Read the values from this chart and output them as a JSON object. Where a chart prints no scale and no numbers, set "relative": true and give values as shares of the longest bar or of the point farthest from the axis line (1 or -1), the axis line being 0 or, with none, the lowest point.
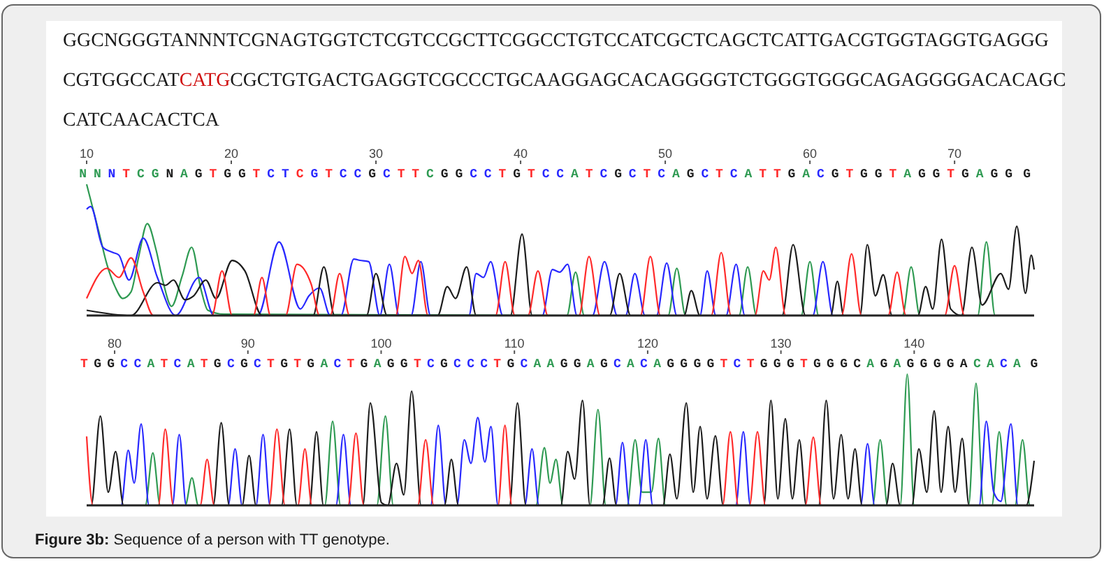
{
  "chart_data": [
    {
      "type": "other",
      "annotations": [
        "GGCNGGGTANNNTCGNAGTGGTCTCGTCCGCTTCGGCCTGTCCATCGCTCAGCTCATTGACGTGGTAGGTGAGGGCGTGGCCAT",
        "CATG",
        "CGCTGTGACTGAGGTCGCCCTGCAAGGAGCACAGGGGTCTGGGTGGGCAGAGGGGACACAGCCATCAACACTCA"
      ],
      "colors": [
        "#1a1a1a",
        "#d01010",
        "#1a1a1a"
      ]
    },
    {
      "type": "line",
      "relative": true,
      "xlim": [
        10,
        75.5
      ],
      "xticks": [
        10,
        20,
        30,
        40,
        50,
        60,
        70
      ],
      "annotations": [
        "N N N T C G N A G T G G T C T C G T C C G C T T C G G C C T G T C C A T C G C T C A G C T C A T T G A C G T G G T A G G T G A G G G"
      ],
      "series": [
        {
          "color": "#2e9a52",
          "x": [
            10,
            10.84,
            11.4,
            11.96,
            12.5,
            13.07,
            13.6,
            14.19,
            14.8,
            15.3,
            15.87,
            16.6,
            17.26,
            17.9,
            18.38,
            19.5,
            43.2,
            43.8,
            44.4,
            50.2,
            50.8,
            51.4,
            55.1,
            55.7,
            56.3,
            59.4,
            60,
            60.6,
            66.4,
            67,
            67.6,
            71.6,
            72.2,
            72.8,
            75.5
          ],
          "values": [
            1,
            0.64,
            0.39,
            0.22,
            0.13,
            0.18,
            0.45,
            0.7,
            0.5,
            0.25,
            0.07,
            0.3,
            0.52,
            0.2,
            0.04,
            0.01,
            0,
            0.33,
            0,
            0,
            0.36,
            0,
            0,
            0.37,
            0,
            0,
            0.41,
            0,
            0,
            0.37,
            0,
            0,
            0.56,
            0,
            0
          ]
        },
        {
          "color": "#2828ff",
          "x": [
            10,
            10.28,
            11.12,
            11.82,
            12.23,
            12.93,
            13.91,
            14.89,
            16.15,
            17.77,
            18.8,
            21.83,
            23.3,
            24.78,
            25.37,
            26.1,
            26.84,
            27.58,
            28.47,
            28.9,
            29.5,
            30.27,
            30.93,
            31.6,
            32.43,
            33.1,
            33.77,
            36.43,
            36.93,
            37.43,
            37.93,
            38.77,
            41.5,
            42.2,
            42.7,
            43.25,
            43.9,
            44.97,
            45.8,
            46.68,
            47.26,
            47.9,
            48.6,
            49.4,
            50.1,
            50.8,
            52.4,
            52.9,
            53.5,
            54.2,
            54.9,
            55.5,
            60.2,
            60.9,
            61.6,
            75.5
          ],
          "values": [
            0.81,
            0.83,
            0.52,
            0.48,
            0.46,
            0.27,
            0.59,
            0.29,
            0,
            0.29,
            0,
            0,
            0.56,
            0.05,
            0.15,
            0.21,
            0,
            0,
            0.43,
            0.42,
            0.41,
            0,
            0.39,
            0,
            0,
            0.41,
            0,
            0,
            0.32,
            0.29,
            0.41,
            0,
            0,
            0.35,
            0.33,
            0.39,
            0,
            0,
            0.41,
            0,
            0,
            0.32,
            0,
            0,
            0.4,
            0,
            0,
            0.34,
            0,
            0,
            0.39,
            0,
            0,
            0.41,
            0,
            0
          ]
        },
        {
          "color": "#1c1c1c",
          "x": [
            10,
            13.07,
            14.89,
            15.45,
            16,
            16.8,
            17.4,
            18.24,
            18.94,
            20.06,
            20.94,
            22.12,
            25.66,
            26.4,
            27.14,
            29.35,
            30,
            30.77,
            34.27,
            34.93,
            35.5,
            36.27,
            36.93,
            39.3,
            40.1,
            40.8,
            46.16,
            46.85,
            47.6,
            51.3,
            51.8,
            52.4,
            58.08,
            58.84,
            59.69,
            61.44,
            61.9,
            62.33,
            63.46,
            63.97,
            64.52,
            65.07,
            65.68,
            67.47,
            68,
            68.49,
            69.1,
            69.73,
            70.48,
            71.2,
            71.9,
            73.2,
            73.73,
            74.3,
            74.9,
            75.3,
            75.5
          ],
          "values": [
            0.04,
            0,
            0.25,
            0.23,
            0.27,
            0.12,
            0.15,
            0.27,
            0.13,
            0.42,
            0.34,
            0,
            0,
            0.37,
            0,
            0,
            0.32,
            0,
            0,
            0.22,
            0.13,
            0.37,
            0,
            0,
            0.62,
            0,
            0,
            0.32,
            0,
            0,
            0.19,
            0,
            0,
            0.54,
            0,
            0,
            0.26,
            0,
            0,
            0.54,
            0.15,
            0.31,
            0,
            0,
            0.22,
            0.05,
            0.58,
            0.05,
            0,
            0.52,
            0.08,
            0.32,
            0.2,
            0.68,
            0.17,
            0.46,
            0.35
          ]
        },
        {
          "color": "#ff2a2a",
          "x": [
            10,
            11.4,
            12.23,
            13.07,
            13.91,
            14.61,
            18.66,
            19.36,
            20.06,
            21.53,
            22.12,
            22.71,
            23.75,
            24.54,
            25.52,
            26.1,
            26.84,
            27.49,
            28.17,
            31.37,
            32,
            32.5,
            32.93,
            33.6,
            38.27,
            38.93,
            39.6,
            40.51,
            41.2,
            41.88,
            44.04,
            44.73,
            45.48,
            48.29,
            48.97,
            49.66,
            53.18,
            53.87,
            54.55,
            56.2,
            56.78,
            57.19,
            57.64,
            58.32,
            62.19,
            62.88,
            63.56,
            65.41,
            66.03,
            66.64,
            69.32,
            70,
            70.68,
            75.5
          ],
          "values": [
            0.13,
            0.36,
            0.29,
            0.44,
            0.18,
            0,
            0,
            0.34,
            0,
            0,
            0.29,
            0,
            0,
            0.39,
            0.24,
            0,
            0,
            0.32,
            0,
            0,
            0.45,
            0.32,
            0.42,
            0,
            0,
            0.41,
            0,
            0,
            0.34,
            0,
            0,
            0.45,
            0,
            0,
            0.45,
            0,
            0,
            0.48,
            0,
            0,
            0.34,
            0.27,
            0.52,
            0,
            0,
            0.47,
            0,
            0,
            0.33,
            0,
            0,
            0.38,
            0,
            0
          ]
        }
      ]
    },
    {
      "type": "line",
      "relative": true,
      "xlim": [
        77.9,
        149
      ],
      "xticks": [
        80,
        90,
        100,
        110,
        120,
        130,
        140
      ],
      "annotations": [
        "T G G C C A T C A T G C G C T G T G A C T G A G G T C G C C C T G C A A G G A G C A C A G G G G T C T G G G T G G G C A G A G G G G A C A C A G",
        "Figure 3b: Sequence of a person with TT genotype."
      ],
      "series": [
        {
          "color": "#2e9a52",
          "x": [
            77.9,
            82.3,
            82.87,
            83.42,
            85.3,
            85.8,
            86.28,
            95.77,
            96.36,
            96.95,
            99.68,
            100.32,
            100.91,
            111.62,
            112.25,
            112.67,
            113.12,
            113.64,
            115.67,
            116.27,
            116.86,
            118.46,
            119.06,
            119.58,
            120.28,
            120.81,
            121.33,
            136.88,
            137.45,
            138,
            138.95,
            139.48,
            140,
            144.08,
            144.64,
            145.2,
            145.83,
            146.38,
            146.94,
            147.57,
            148.13,
            148.69,
            149
          ],
          "values": [
            0,
            0,
            0.4,
            0,
            0,
            0.21,
            0,
            0,
            0.64,
            0,
            0,
            0.68,
            0,
            0,
            0.44,
            0.17,
            0.35,
            0,
            0,
            0.73,
            0,
            0,
            0.5,
            0.1,
            0.1,
            0.51,
            0,
            0,
            0.5,
            0,
            0,
            1,
            0,
            0,
            0.93,
            0,
            0,
            0.56,
            0,
            0,
            0.5,
            0,
            0
          ]
        },
        {
          "color": "#2828ff",
          "x": [
            77.9,
            80.49,
            81.02,
            81.47,
            81.99,
            82.58,
            84.33,
            84.85,
            85.37,
            88.52,
            89.04,
            89.57,
            90.61,
            91.14,
            91.66,
            96.61,
            97.17,
            97.73,
            103.72,
            104.29,
            104.86,
            105.69,
            106.24,
            106.74,
            107.25,
            107.78,
            108.24,
            108.77,
            110.78,
            111.32,
            111.84,
            117.59,
            118.11,
            118.63,
            119.33,
            119.86,
            120.38,
            126.61,
            127.18,
            127.71,
            135.98,
            136.5,
            137.03,
            144.88,
            145.41,
            145.97,
            146.5,
            147.26,
            147.78,
            149
          ],
          "values": [
            0,
            0,
            0.42,
            0.17,
            0.62,
            0,
            0,
            0.54,
            0,
            0,
            0.43,
            0,
            0,
            0.54,
            0,
            0,
            0.54,
            0,
            0,
            0.61,
            0,
            0,
            0.5,
            0.32,
            0.67,
            0.33,
            0.6,
            0,
            0,
            0.43,
            0,
            0,
            0.48,
            0,
            0,
            0.5,
            0,
            0,
            0.56,
            0,
            0,
            0.47,
            0,
            0,
            0.64,
            0.1,
            0.03,
            0.62,
            0,
            0
          ]
        },
        {
          "color": "#1c1c1c",
          "x": [
            77.9,
            78.24,
            78.93,
            79.52,
            80.07,
            80.67,
            87.4,
            88,
            88.6,
            89.57,
            90.09,
            90.61,
            92.53,
            93.13,
            93.68,
            94.62,
            95.15,
            95.67,
            98.63,
            99.19,
            100.03,
            100.5,
            101.15,
            101.7,
            102.29,
            103,
            104.75,
            105.27,
            105.8,
            109.63,
            110.23,
            110.86,
            113.48,
            114,
            114.52,
            115.11,
            115.67,
            116.61,
            117.14,
            117.66,
            121.15,
            121.67,
            122.19,
            122.9,
            123.42,
            123.94,
            124.46,
            125.08,
            125.67,
            128.72,
            129.25,
            129.77,
            130.33,
            130.86,
            131.38,
            131.9,
            132.84,
            133.4,
            133.95,
            134.52,
            135.04,
            135.56,
            136.09,
            137.9,
            138.38,
            138.95,
            139.83,
            140.35,
            140.95,
            141.5,
            142.02,
            142.55,
            143.07,
            143.6,
            144.12,
            148.4,
            149
          ],
          "values": [
            0,
            0,
            0.68,
            0.1,
            0.41,
            0,
            0,
            0.63,
            0,
            0,
            0.38,
            0,
            0,
            0.58,
            0,
            0,
            0.56,
            0,
            0,
            0.78,
            0.02,
            0,
            0.32,
            0.08,
            0.87,
            0,
            0,
            0.35,
            0,
            0,
            0.78,
            0,
            0,
            0.41,
            0.2,
            0.8,
            0,
            0,
            0.36,
            0,
            0,
            0.39,
            0.05,
            0.78,
            0.1,
            0.6,
            0.05,
            0.53,
            0,
            0,
            0.8,
            0.05,
            0.66,
            0.05,
            0.5,
            0,
            0,
            0.8,
            0.05,
            0.54,
            0.05,
            0.43,
            0,
            0,
            0.32,
            0,
            0,
            0.43,
            0.1,
            0.72,
            0.1,
            0.6,
            0.1,
            0.51,
            0,
            0,
            0.34
          ]
        },
        {
          "color": "#ff2a2a",
          "x": [
            77.9,
            78.37,
            83.28,
            83.8,
            84.4,
            86.42,
            86.94,
            87.47,
            91.59,
            92.18,
            92.78,
            93.75,
            94.28,
            94.8,
            97.52,
            98.11,
            98.7,
            102.75,
            103.34,
            103.94,
            108.77,
            109.29,
            109.81,
            125.62,
            126.21,
            126.8,
            127.64,
            128.24,
            128.83,
            131.83,
            132.43,
            133.02,
            149
          ],
          "values": [
            0.525,
            0,
            0,
            0.58,
            0,
            0,
            0.35,
            0,
            0,
            0.58,
            0,
            0,
            0.43,
            0,
            0,
            0.55,
            0,
            0,
            0.5,
            0,
            0,
            0.61,
            0,
            0,
            0.56,
            0,
            0,
            0.56,
            0,
            0,
            0.52,
            0,
            0
          ]
        }
      ]
    }
  ]
}
